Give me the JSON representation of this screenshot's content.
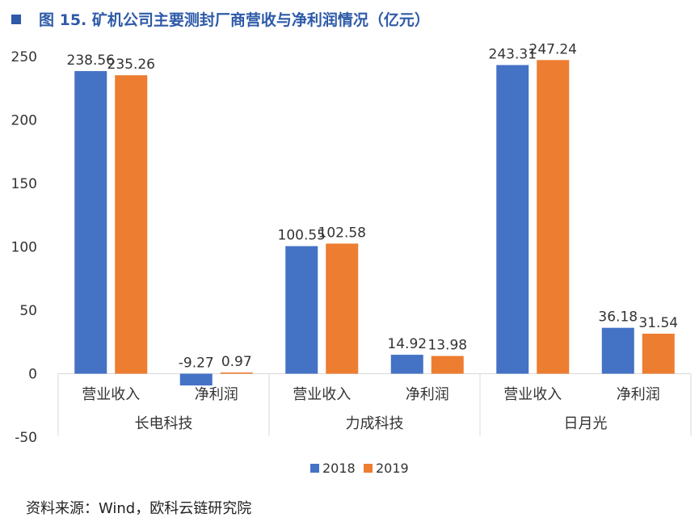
{
  "title": "图 15. 矿机公司主要测封厂商营收与净利润情况（亿元）",
  "source": "资料来源：Wind，欧科云链研究院",
  "chart_data": {
    "type": "bar",
    "groups": [
      {
        "name": "长电科技",
        "categories": [
          "营业收入",
          "净利润"
        ]
      },
      {
        "name": "力成科技",
        "categories": [
          "营业收入",
          "净利润"
        ]
      },
      {
        "name": "日月光",
        "categories": [
          "营业收入",
          "净利润"
        ]
      }
    ],
    "series": [
      {
        "name": "2018",
        "color": "#4472C4",
        "values": [
          238.56,
          -9.27,
          100.55,
          14.92,
          243.31,
          36.18
        ]
      },
      {
        "name": "2019",
        "color": "#ED7D31",
        "values": [
          235.26,
          0.97,
          102.58,
          13.98,
          247.24,
          31.54
        ]
      }
    ],
    "data_labels": {
      "2018": [
        "238.56",
        "-9.27",
        "100.55",
        "14.92",
        "243.31",
        "36.18"
      ],
      "2019": [
        "235.26",
        "0.97",
        "102.58",
        "13.98",
        "247.24",
        "31.54"
      ]
    },
    "yticks": [
      "250",
      "200",
      "150",
      "100",
      "50",
      "0",
      "-50"
    ],
    "ylim": [
      -50,
      250
    ],
    "grid": false,
    "legend_position": "bottom"
  }
}
